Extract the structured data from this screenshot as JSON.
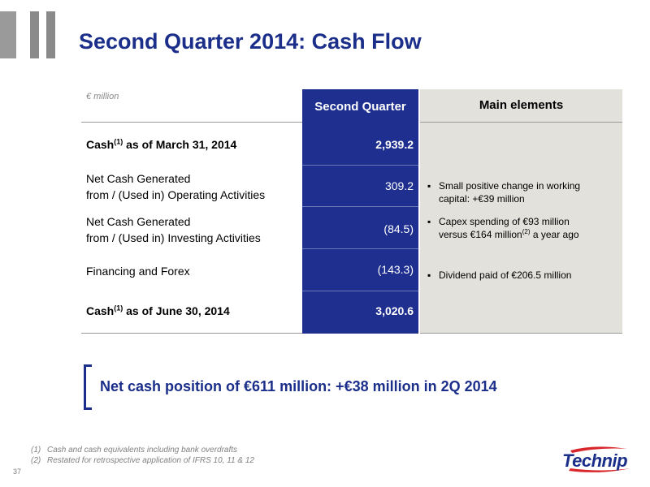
{
  "title": "Second Quarter 2014: Cash Flow",
  "unit": "€ million",
  "table": {
    "header_value": "Second Quarter",
    "header_elements": "Main elements",
    "rows": [
      {
        "label_pre": "Cash",
        "label_sup": "(1)",
        "label_post": " as of March 31, 2014",
        "value": "2,939.2"
      },
      {
        "label_line1": "Net Cash Generated",
        "label_line2": "from / (Used in) Operating Activities",
        "value": "309.2"
      },
      {
        "label_line1": "Net Cash Generated",
        "label_line2": "from / (Used in) Investing Activities",
        "value": "(84.5)"
      },
      {
        "label": "Financing and Forex",
        "value": "(143.3)"
      },
      {
        "label_pre": "Cash",
        "label_sup": "(1)",
        "label_post": " as of June 30, 2014",
        "value": "3,020.6"
      }
    ],
    "bullets": [
      {
        "line1": "Small positive change in working",
        "line2": "capital: +€39 million"
      },
      {
        "line1": "Capex spending of €93 million",
        "line2_pre": "versus €164 million",
        "line2_sup": "(2)",
        "line2_post": " a year ago"
      },
      {
        "line1": "Dividend paid of €206.5 million"
      }
    ],
    "bullet_mark": "▪"
  },
  "highlight": "Net cash position of  €611 million: +€38 million in 2Q 2014",
  "footnotes": [
    {
      "num": "(1)",
      "text": "Cash and cash equivalents including bank overdrafts"
    },
    {
      "num": "(2)",
      "text": "Restated for retrospective application of IFRS 10, 11 & 12"
    }
  ],
  "page_number": "37",
  "logo_text": "Technip",
  "colors": {
    "brand_blue": "#1a2e8a",
    "table_blue": "#1e2f8f",
    "panel_grey": "#e3e1dc",
    "logo_bars": "#8a8a8a"
  }
}
